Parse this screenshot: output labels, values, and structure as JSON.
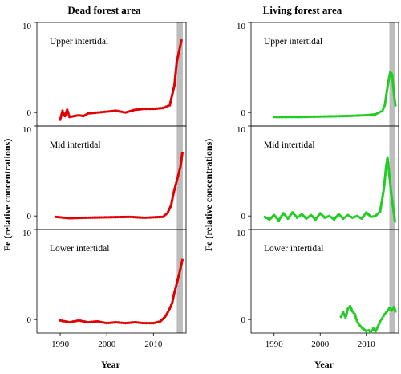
{
  "chart_data": {
    "type": "scatter",
    "ylabel": "Fe (relative concentrations)",
    "xlabel": "Year",
    "x_ticks": [
      1990,
      2000,
      2010
    ],
    "x_range": [
      1985,
      2017
    ],
    "y_range": [
      -1.5,
      10
    ],
    "y_ticks": [
      0,
      10
    ],
    "shaded_interval": [
      2015,
      2016.3
    ],
    "shade_color": "#bdbdbd",
    "columns": [
      {
        "title": "Dead forest area",
        "color": "#e00000",
        "panels": [
          {
            "label": "Upper intertidal",
            "x": [
              1990,
              1990.5,
              1991,
              1991.5,
              1992,
              1993,
              1994,
              1995,
              1996,
              1998,
              2000,
              2002,
              2004,
              2006,
              2008,
              2010,
              2012,
              2013.5,
              2014.5,
              2015,
              2015.5,
              2016
            ],
            "y": [
              -0.8,
              0.2,
              -0.4,
              0.3,
              -0.5,
              -0.4,
              -0.3,
              -0.4,
              -0.1,
              0.0,
              0.1,
              0.2,
              0.0,
              0.3,
              0.4,
              0.4,
              0.5,
              0.8,
              3.0,
              5.6,
              6.8,
              8.0
            ]
          },
          {
            "label": "Mid intertidal",
            "x": [
              1989,
              1992,
              1995,
              2000,
              2005,
              2008,
              2010,
              2012,
              2013,
              2013.8,
              2014.3,
              2014.8,
              2015.3,
              2015.8,
              2016.2
            ],
            "y": [
              -0.1,
              -0.25,
              -0.2,
              -0.15,
              -0.1,
              -0.2,
              -0.15,
              -0.1,
              0.3,
              1.2,
              2.5,
              3.5,
              4.5,
              5.5,
              7.0
            ]
          },
          {
            "label": "Lower intertidal",
            "x": [
              1990,
              1992,
              1994,
              1996,
              1998,
              2000,
              2002,
              2004,
              2006,
              2008,
              2010,
              2011.5,
              2012.5,
              2013.3,
              2014,
              2014.5,
              2015,
              2015.5,
              2016.2
            ],
            "y": [
              -0.1,
              -0.3,
              -0.1,
              -0.3,
              -0.2,
              -0.4,
              -0.3,
              -0.4,
              -0.3,
              -0.4,
              -0.4,
              -0.2,
              0.3,
              1.0,
              1.8,
              3.0,
              4.0,
              5.0,
              6.6
            ]
          }
        ]
      },
      {
        "title": "Living forest area",
        "color": "#22cc22",
        "panels": [
          {
            "label": "Upper intertidal",
            "x": [
              1990,
              1995,
              2000,
              2005,
              2010,
              2012,
              2013.5,
              2014,
              2014.5,
              2014.8,
              2015.2,
              2015.6,
              2016,
              2016.3
            ],
            "y": [
              -0.5,
              -0.5,
              -0.45,
              -0.4,
              -0.3,
              -0.2,
              0.2,
              0.8,
              2.5,
              3.5,
              4.5,
              4.2,
              2.0,
              0.8
            ]
          },
          {
            "label": "Mid intertidal",
            "x": [
              1988,
              1989,
              1990,
              1991,
              1992,
              1993,
              1994,
              1995,
              1996,
              1997,
              1998,
              1999,
              2000,
              2001,
              2002,
              2003,
              2004,
              2005,
              2006,
              2007,
              2008,
              2009,
              2010,
              2011,
              2012,
              2013,
              2013.8,
              2014.3,
              2014.6,
              2015,
              2015.4,
              2015.8,
              2016.2
            ],
            "y": [
              -0.1,
              -0.4,
              0.1,
              -0.5,
              0.3,
              -0.3,
              0.4,
              -0.2,
              0.2,
              -0.3,
              0.1,
              -0.4,
              0.3,
              -0.2,
              0.0,
              -0.4,
              0.2,
              -0.3,
              0.1,
              -0.2,
              0.0,
              -0.3,
              0.4,
              -0.1,
              0.0,
              0.5,
              3.0,
              5.5,
              6.5,
              4.5,
              2.5,
              1.0,
              -0.6
            ]
          },
          {
            "label": "Lower intertidal",
            "x": [
              2004.5,
              2005,
              2005.5,
              2006,
              2006.5,
              2007,
              2007.5,
              2008,
              2008.5,
              2009,
              2009.5,
              2010,
              2010.5,
              2011,
              2011.5,
              2012,
              2012.5,
              2013,
              2013.5,
              2014,
              2014.5,
              2015,
              2015.5,
              2016,
              2016.3
            ],
            "y": [
              0.3,
              0.8,
              0.2,
              1.2,
              1.5,
              0.9,
              0.6,
              -0.2,
              -0.6,
              -0.9,
              -1.1,
              -1.3,
              -1.2,
              -1.4,
              -1.0,
              -1.3,
              -0.8,
              -0.2,
              0.2,
              0.6,
              0.9,
              1.3,
              1.0,
              1.4,
              0.9
            ]
          }
        ]
      }
    ]
  }
}
